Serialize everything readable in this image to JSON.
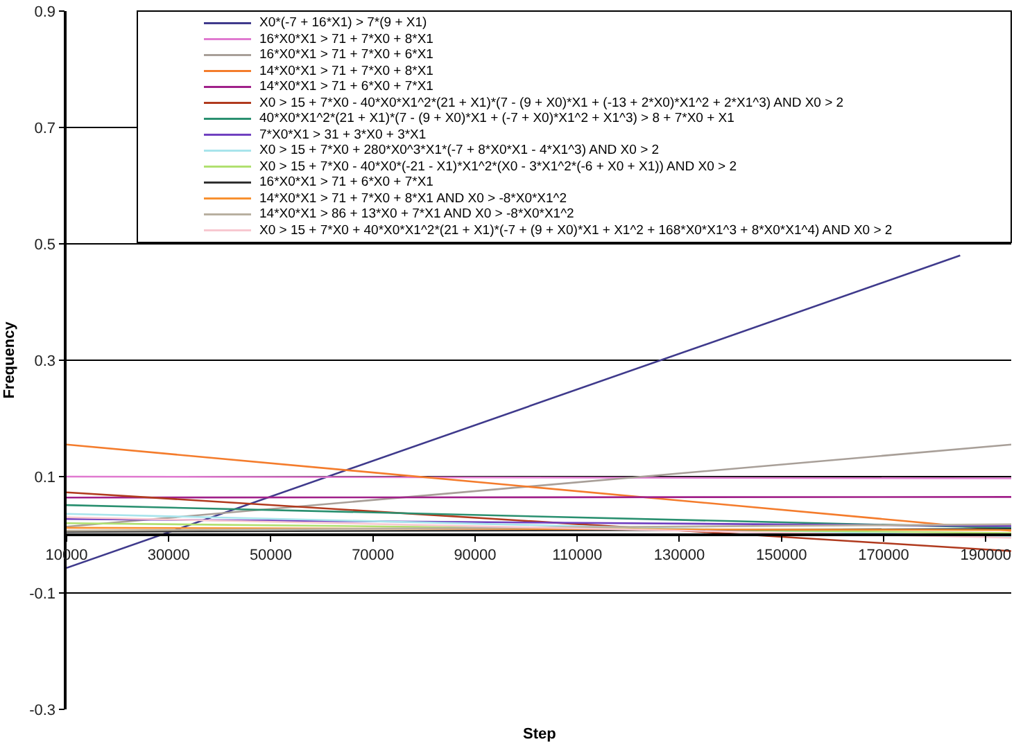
{
  "chart_data": {
    "type": "line",
    "xlabel": "Step",
    "ylabel": "Frequency",
    "x": [
      10000,
      195000
    ],
    "xlim": [
      10000,
      195000
    ],
    "xticks": [
      10000,
      30000,
      50000,
      70000,
      90000,
      110000,
      130000,
      150000,
      170000,
      190000
    ],
    "ylim": [
      -0.3,
      0.9
    ],
    "yticks": [
      -0.3,
      -0.1,
      0.1,
      0.3,
      0.5,
      0.7,
      0.9
    ],
    "grid": "y",
    "legend": "top right",
    "marker": "none",
    "line_style": "solid",
    "series": [
      {
        "name": "X0*(-7 + 16*X1) > 7*(9 + X1)",
        "color": "#3f3a8c",
        "x": [
          10000,
          185000
        ],
        "values": [
          -0.057,
          0.48
        ]
      },
      {
        "name": "16*X0*X1 > 71 + 7*X0 + 8*X1",
        "color": "#e07ad0",
        "values": [
          0.1,
          0.097
        ]
      },
      {
        "name": "16*X0*X1 > 71 + 7*X0 + 6*X1",
        "color": "#a89f98",
        "values": [
          0.014,
          0.155
        ]
      },
      {
        "name": "14*X0*X1 > 71 + 7*X0 + 8*X1",
        "color": "#f47c2c",
        "values": [
          0.155,
          0.007
        ]
      },
      {
        "name": "14*X0*X1 > 71 + 6*X0 + 7*X1",
        "color": "#a0208a",
        "values": [
          0.064,
          0.065
        ]
      },
      {
        "name": "X0 > 15 + 7*X0 - 40*X0*X1^2*(21 + X1)*(7 - (9 + X0)*X1 + (-13 + 2*X0)*X1^2 + 2*X1^3) AND X0 > 2",
        "color": "#b03a1e",
        "values": [
          0.073,
          -0.028
        ]
      },
      {
        "name": "40*X0*X1^2*(21 + X1)*(7 - (9 + X0)*X1 + (-7 + X0)*X1^2 + X1^3) > 8 + 7*X0 + X1",
        "color": "#2a9070",
        "values": [
          0.051,
          0.012
        ]
      },
      {
        "name": "7*X0*X1 > 31 + 3*X0 + 3*X1",
        "color": "#7040c0",
        "values": [
          0.027,
          0.015
        ]
      },
      {
        "name": "X0 > 15 + 7*X0 + 280*X0^3*X1*(-7 + 8*X0*X1 - 4*X1^3) AND X0 > 2",
        "color": "#a8e4ec",
        "values": [
          0.036,
          -0.003
        ]
      },
      {
        "name": "X0 > 15 + 7*X0 - 40*X0*(-21 - X1)*X1^2*(X0 - 3*X1^2*(-6 + X0 + X1)) AND X0 > 2",
        "color": "#b0e070",
        "values": [
          0.02,
          0.003
        ]
      },
      {
        "name": "16*X0*X1 > 71 + 6*X0 + 7*X1",
        "color": "#303030",
        "values": [
          0.005,
          0.01
        ]
      },
      {
        "name": "14*X0*X1 > 71 + 7*X0 + 8*X1 AND X0 > -8*X0*X1^2",
        "color": "#f89030",
        "values": [
          0.012,
          0.008
        ]
      },
      {
        "name": "14*X0*X1 > 86 + 13*X0 + 7*X1 AND X0 > -8*X0*X1^2",
        "color": "#b8b0a0",
        "values": [
          0.007,
          0.018
        ]
      },
      {
        "name": "X0 > 15 + 7*X0 + 40*X0*X1^2*(21 + X1)*(-7 + (9 + X0)*X1 + X1^2 + 168*X0*X1^3 + 8*X0*X1^4) AND X0 > 2",
        "color": "#f8c8d0",
        "values": [
          0.03,
          -0.005
        ]
      }
    ]
  }
}
